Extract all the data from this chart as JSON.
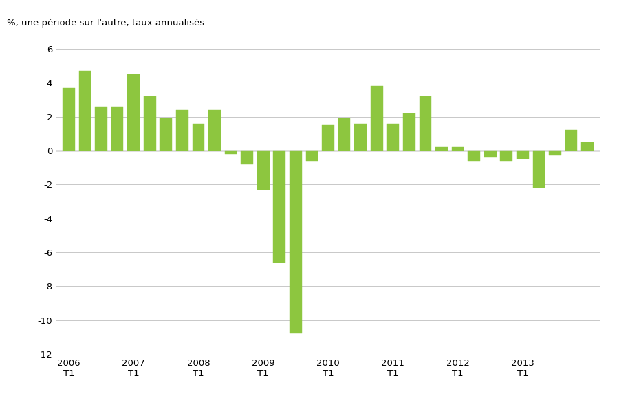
{
  "ylabel": "%, une période sur l'autre, taux annualisés",
  "bar_color": "#8DC63F",
  "ylim": [
    -12,
    6
  ],
  "yticks": [
    -12,
    -10,
    -8,
    -6,
    -4,
    -2,
    0,
    2,
    4,
    6
  ],
  "values": [
    3.7,
    4.7,
    2.6,
    2.6,
    4.5,
    3.2,
    1.9,
    2.4,
    1.6,
    2.4,
    -0.2,
    -0.8,
    -2.3,
    -6.6,
    -10.8,
    -0.6,
    1.5,
    1.9,
    1.6,
    3.8,
    1.6,
    2.2,
    3.2,
    0.2,
    0.2,
    -0.6,
    -0.4,
    -0.6,
    -0.5,
    -2.2,
    -0.3,
    1.2,
    0.5
  ],
  "xtick_positions": [
    0,
    4,
    8,
    12,
    16,
    20,
    24,
    28
  ],
  "xtick_labels": [
    "2006\nT1",
    "2007\nT1",
    "2008\nT1",
    "2009\nT1",
    "2010\nT1",
    "2011\nT1",
    "2012\nT1",
    "2013\nT1"
  ],
  "background_color": "#ffffff",
  "grid_color": "#c8c8c8",
  "font_size_ylabel": 9.5,
  "font_size_ticks": 9.5
}
